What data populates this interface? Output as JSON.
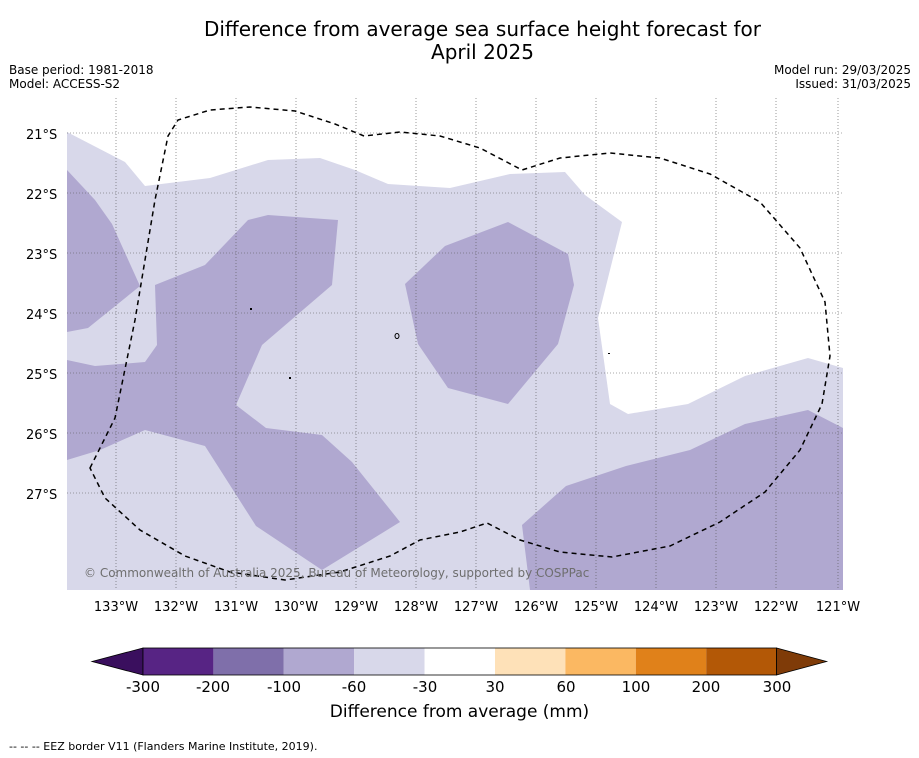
{
  "title_line1": "Difference from average sea surface height forecast for",
  "title_line2": "April 2025",
  "meta_left": [
    "Base period: 1981-2018",
    "Model: ACCESS-S2"
  ],
  "meta_right": [
    "Model run: 29/03/2025",
    "Issued: 31/03/2025"
  ],
  "lat_labels": [
    "21°S",
    "22°S",
    "23°S",
    "24°S",
    "25°S",
    "26°S",
    "27°S"
  ],
  "lon_labels": [
    "133°W",
    "132°W",
    "131°W",
    "130°W",
    "129°W",
    "128°W",
    "127°W",
    "126°W",
    "125°W",
    "124°W",
    "123°W",
    "122°W",
    "121°W"
  ],
  "copyright": "© Commonwealth of Australia 2025, Bureau of Meteorology, supported by COSPPac",
  "colorbar": {
    "ticks": [
      "-300",
      "-200",
      "-100",
      "-60",
      "-30",
      "30",
      "60",
      "100",
      "200",
      "300"
    ],
    "colors": [
      "#3a0f5e",
      "#572484",
      "#7f6faa",
      "#b0a8d0",
      "#d8d8ea",
      "#ffffff",
      "#fee1b8",
      "#fbb862",
      "#e0811a",
      "#b35806",
      "#7f3b08"
    ],
    "label": "Difference from average (mm)"
  },
  "footer": "--  --  -- EEZ border V11 (Flanders Marine Institute, 2019).",
  "map_colors": {
    "light": "#d8d8ea",
    "medium": "#b0a8d0"
  }
}
